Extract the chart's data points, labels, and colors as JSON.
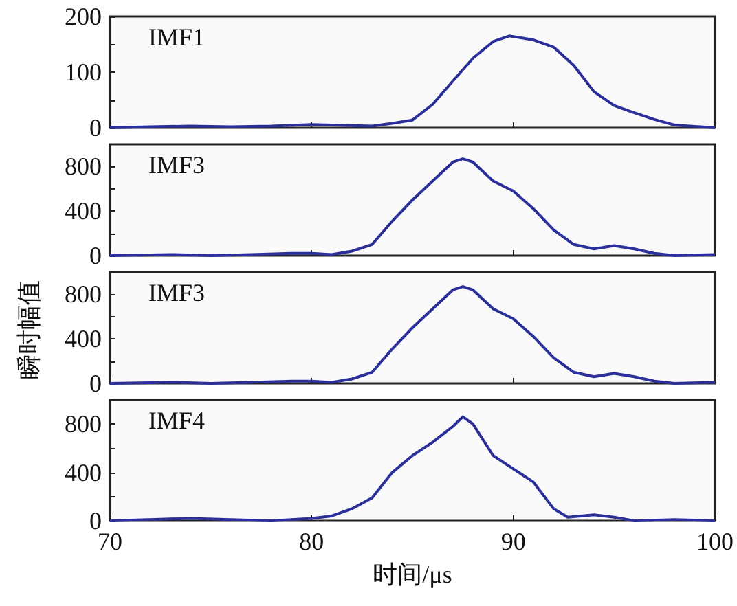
{
  "chart_data": [
    {
      "type": "line",
      "annotations": [
        "IMF1"
      ],
      "x": [
        70,
        72,
        74,
        76,
        78,
        80,
        82,
        83,
        84,
        85,
        86,
        87,
        88,
        89,
        89.8,
        90,
        91,
        92,
        93,
        94,
        95,
        96,
        97,
        98,
        100
      ],
      "series": [
        {
          "color": "#2b2f9a",
          "values": [
            0,
            2,
            3,
            2,
            3,
            6,
            4,
            3,
            8,
            14,
            42,
            84,
            125,
            155,
            165,
            164,
            158,
            145,
            112,
            65,
            40,
            27,
            15,
            5,
            0
          ]
        }
      ],
      "xlim": [
        70,
        100
      ],
      "xticks": [
        70,
        80,
        90,
        100
      ],
      "ylim": [
        0,
        200
      ],
      "yticks": [
        0,
        {
          "value": 50,
          "label": null
        },
        100,
        {
          "value": 150,
          "label": null
        },
        200
      ],
      "tick_labels": "y",
      "grid": false
    },
    {
      "type": "line",
      "annotations": [
        "IMF3"
      ],
      "ylabel": "瞬时幅值",
      "x": [
        70,
        73,
        75,
        77,
        79,
        80,
        81,
        82,
        83,
        84,
        85,
        86,
        87,
        87.5,
        88,
        89,
        90,
        91,
        92,
        93,
        94,
        95,
        96,
        97,
        98,
        100
      ],
      "series": [
        {
          "color": "#2b2f9a",
          "values": [
            0,
            10,
            0,
            10,
            20,
            20,
            10,
            40,
            100,
            310,
            500,
            670,
            840,
            870,
            840,
            670,
            580,
            420,
            230,
            100,
            60,
            90,
            60,
            20,
            0,
            10
          ]
        }
      ],
      "xlim": [
        70,
        100
      ],
      "xticks": [
        70,
        80,
        90,
        100
      ],
      "ylim": [
        0,
        1000
      ],
      "yticks": [
        0,
        {
          "value": 200,
          "label": null
        },
        400,
        {
          "value": 600,
          "label": null
        },
        800
      ],
      "tick_labels": "y",
      "grid": false
    },
    {
      "type": "line",
      "annotations": [
        "IMF3"
      ],
      "x": [
        70,
        73,
        75,
        77,
        79,
        80,
        81,
        82,
        83,
        84,
        85,
        86,
        87,
        87.5,
        88,
        89,
        90,
        91,
        92,
        93,
        94,
        95,
        96,
        97,
        98,
        100
      ],
      "series": [
        {
          "color": "#2b2f9a",
          "values": [
            0,
            10,
            0,
            10,
            20,
            20,
            10,
            40,
            100,
            310,
            500,
            670,
            840,
            870,
            840,
            670,
            580,
            420,
            230,
            100,
            60,
            90,
            60,
            20,
            0,
            10
          ]
        }
      ],
      "xlim": [
        70,
        100
      ],
      "xticks": [
        70,
        80,
        90,
        100
      ],
      "ylim": [
        0,
        1000
      ],
      "yticks": [
        0,
        {
          "value": 200,
          "label": null
        },
        400,
        {
          "value": 600,
          "label": null
        },
        800
      ],
      "tick_labels": "y",
      "grid": false
    },
    {
      "type": "line",
      "annotations": [
        "IMF4"
      ],
      "xlabel": "时间/μs",
      "x": [
        70,
        74,
        76,
        78,
        80,
        81,
        82,
        83,
        84,
        85,
        86,
        87,
        87.5,
        88,
        89,
        90,
        91,
        92,
        92.7,
        94,
        95,
        96,
        98,
        100
      ],
      "series": [
        {
          "color": "#2b2f9a",
          "values": [
            0,
            20,
            10,
            0,
            20,
            40,
            100,
            190,
            400,
            540,
            650,
            780,
            860,
            800,
            540,
            430,
            320,
            100,
            30,
            50,
            30,
            0,
            10,
            0
          ]
        }
      ],
      "xlim": [
        70,
        100
      ],
      "xticks": [
        70,
        80,
        90,
        100
      ],
      "ylim": [
        0,
        1000
      ],
      "yticks": [
        0,
        {
          "value": 200,
          "label": null
        },
        400,
        {
          "value": 600,
          "label": null
        },
        800
      ],
      "grid": false
    }
  ]
}
